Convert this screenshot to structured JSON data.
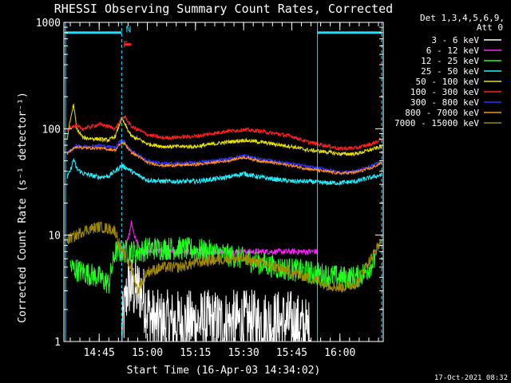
{
  "chart_data": {
    "type": "line",
    "title": "RHESSI Observing Summary Count Rates, Corrected",
    "xlabel": "Start Time (16-Apr-03 14:34:02)",
    "ylabel": "Corrected Count Rate (s⁻¹ detector⁻¹)",
    "y_scale": "log",
    "ylim": [
      1,
      1000
    ],
    "xlim_minutes": [
      34.0,
      133.5
    ],
    "x_ticks": [
      {
        "label": "14:45",
        "value": 45
      },
      {
        "label": "15:00",
        "value": 60
      },
      {
        "label": "15:15",
        "value": 75
      },
      {
        "label": "15:30",
        "value": 90
      },
      {
        "label": "15:45",
        "value": 105
      },
      {
        "label": "16:00",
        "value": 120
      }
    ],
    "y_ticks": [
      {
        "label": "1000",
        "value": 1000
      },
      {
        "label": "100",
        "value": 100
      },
      {
        "label": "10",
        "value": 10
      },
      {
        "label": "1",
        "value": 1
      }
    ],
    "legend_header": [
      "Det 1,3,4,5,6,9,",
      "Att 0"
    ],
    "legend_position": "right",
    "grid": false,
    "footer": "17-Oct-2021 08:32",
    "annotations": [
      {
        "label": "F",
        "color": "#ff3030"
      },
      {
        "label": "N",
        "color": "#20e0ff"
      }
    ],
    "shading_bars": [
      {
        "color": "#20e0ff",
        "x": [
          34.5,
          52.0
        ],
        "y": 800
      },
      {
        "color": "#20e0ff",
        "x": [
          113.0,
          133.0
        ],
        "y": 800
      },
      {
        "color": "#ff2020",
        "x": [
          53.0,
          55.0
        ],
        "y": 620
      }
    ],
    "vlines": [
      {
        "x": 34.5,
        "style": "solid",
        "color": "#20e0ff"
      },
      {
        "x": 52.0,
        "style": "dashed",
        "color": "#20e0ff"
      },
      {
        "x": 113.0,
        "style": "solid",
        "color": "#20e0ff"
      },
      {
        "x": 133.0,
        "style": "dashed",
        "color": "#20e0ff"
      }
    ],
    "series": [
      {
        "name": "3 - 6 keV",
        "color": "#ffffff",
        "noise": 0.7,
        "points": [
          [
            52,
            1.2
          ],
          [
            53,
            2
          ],
          [
            54,
            3.5
          ],
          [
            56,
            3
          ],
          [
            58,
            3
          ],
          [
            60,
            2
          ],
          [
            62,
            1.5
          ],
          [
            75,
            1.5
          ],
          [
            90,
            1.5
          ],
          [
            105,
            1.5
          ],
          [
            111,
            1.2
          ]
        ]
      },
      {
        "name": "6 - 12 keV",
        "color": "#ff20ff",
        "noise": 0.06,
        "points": [
          [
            52,
            7
          ],
          [
            54,
            9
          ],
          [
            55,
            13
          ],
          [
            56,
            10
          ],
          [
            58,
            7
          ],
          [
            60,
            7
          ],
          [
            75,
            7
          ],
          [
            90,
            7
          ],
          [
            105,
            7
          ],
          [
            112,
            7
          ],
          [
            113,
            7
          ]
        ]
      },
      {
        "name": "12 - 25 keV",
        "color": "#20ff20",
        "noise": 0.25,
        "points": [
          [
            36,
            5
          ],
          [
            40,
            4.5
          ],
          [
            45,
            4
          ],
          [
            48,
            3.5
          ],
          [
            50,
            7
          ],
          [
            52,
            7
          ],
          [
            55,
            7
          ],
          [
            58,
            7
          ],
          [
            60,
            7.5
          ],
          [
            70,
            7.5
          ],
          [
            80,
            7
          ],
          [
            90,
            6
          ],
          [
            100,
            5
          ],
          [
            110,
            4.5
          ],
          [
            120,
            4
          ],
          [
            125,
            4
          ],
          [
            128,
            4.5
          ],
          [
            131,
            6
          ]
        ]
      },
      {
        "name": "25 - 50 keV",
        "color": "#20f0ff",
        "noise": 0.05,
        "points": [
          [
            35,
            35
          ],
          [
            36,
            40
          ],
          [
            37,
            52
          ],
          [
            38,
            42
          ],
          [
            40,
            38
          ],
          [
            45,
            35
          ],
          [
            48,
            36
          ],
          [
            50,
            40
          ],
          [
            52,
            45
          ],
          [
            54,
            42
          ],
          [
            56,
            38
          ],
          [
            60,
            33
          ],
          [
            65,
            32
          ],
          [
            75,
            32
          ],
          [
            85,
            35
          ],
          [
            90,
            38
          ],
          [
            95,
            35
          ],
          [
            105,
            32
          ],
          [
            110,
            32
          ],
          [
            115,
            31
          ],
          [
            120,
            31
          ],
          [
            125,
            32
          ],
          [
            130,
            35
          ],
          [
            133,
            37
          ]
        ]
      },
      {
        "name": "50 - 100 keV",
        "color": "#e8e000",
        "noise": 0.04,
        "points": [
          [
            35,
            80
          ],
          [
            36,
            120
          ],
          [
            37,
            170
          ],
          [
            38,
            100
          ],
          [
            40,
            82
          ],
          [
            45,
            80
          ],
          [
            48,
            78
          ],
          [
            50,
            85
          ],
          [
            52,
            125
          ],
          [
            53,
            110
          ],
          [
            55,
            85
          ],
          [
            58,
            78
          ],
          [
            60,
            72
          ],
          [
            65,
            68
          ],
          [
            75,
            68
          ],
          [
            85,
            75
          ],
          [
            90,
            78
          ],
          [
            95,
            75
          ],
          [
            105,
            68
          ],
          [
            110,
            63
          ],
          [
            115,
            61
          ],
          [
            120,
            58
          ],
          [
            125,
            58
          ],
          [
            130,
            64
          ],
          [
            133,
            68
          ]
        ]
      },
      {
        "name": "100 - 300 keV",
        "color": "#ff2020",
        "noise": 0.04,
        "points": [
          [
            35,
            95
          ],
          [
            36,
            105
          ],
          [
            38,
            105
          ],
          [
            40,
            100
          ],
          [
            45,
            110
          ],
          [
            48,
            105
          ],
          [
            50,
            100
          ],
          [
            52,
            125
          ],
          [
            53,
            130
          ],
          [
            55,
            105
          ],
          [
            58,
            95
          ],
          [
            60,
            88
          ],
          [
            65,
            82
          ],
          [
            75,
            85
          ],
          [
            85,
            95
          ],
          [
            90,
            98
          ],
          [
            95,
            95
          ],
          [
            105,
            85
          ],
          [
            110,
            75
          ],
          [
            115,
            70
          ],
          [
            120,
            65
          ],
          [
            125,
            66
          ],
          [
            130,
            72
          ],
          [
            133,
            80
          ]
        ]
      },
      {
        "name": "300 - 800 keV",
        "color": "#3030ff",
        "noise": 0.03,
        "points": [
          [
            35,
            58
          ],
          [
            36,
            62
          ],
          [
            38,
            70
          ],
          [
            40,
            68
          ],
          [
            45,
            70
          ],
          [
            48,
            68
          ],
          [
            50,
            67
          ],
          [
            52,
            80
          ],
          [
            53,
            75
          ],
          [
            55,
            62
          ],
          [
            58,
            55
          ],
          [
            60,
            50
          ],
          [
            65,
            47
          ],
          [
            75,
            48
          ],
          [
            85,
            52
          ],
          [
            90,
            56
          ],
          [
            95,
            52
          ],
          [
            105,
            47
          ],
          [
            110,
            44
          ],
          [
            115,
            42
          ],
          [
            120,
            39
          ],
          [
            125,
            40
          ],
          [
            130,
            45
          ],
          [
            133,
            50
          ]
        ]
      },
      {
        "name": "800 - 7000 keV",
        "color": "#ff9020",
        "noise": 0.03,
        "points": [
          [
            35,
            58
          ],
          [
            36,
            62
          ],
          [
            38,
            68
          ],
          [
            40,
            66
          ],
          [
            45,
            66
          ],
          [
            48,
            64
          ],
          [
            50,
            63
          ],
          [
            52,
            74
          ],
          [
            53,
            72
          ],
          [
            55,
            60
          ],
          [
            58,
            53
          ],
          [
            60,
            48
          ],
          [
            65,
            45
          ],
          [
            75,
            46
          ],
          [
            85,
            50
          ],
          [
            90,
            54
          ],
          [
            95,
            50
          ],
          [
            105,
            45
          ],
          [
            110,
            42
          ],
          [
            115,
            40
          ],
          [
            120,
            38
          ],
          [
            125,
            39
          ],
          [
            130,
            43
          ],
          [
            133,
            48
          ]
        ]
      },
      {
        "name": "7000 - 15000 keV",
        "color": "#a08800",
        "noise": 0.12,
        "points": [
          [
            35,
            9
          ],
          [
            38,
            10
          ],
          [
            40,
            11
          ],
          [
            45,
            12
          ],
          [
            48,
            11.5
          ],
          [
            50,
            11
          ],
          [
            52,
            7
          ],
          [
            55,
            5
          ],
          [
            57,
            3
          ],
          [
            58,
            3.5
          ],
          [
            60,
            4.5
          ],
          [
            65,
            5
          ],
          [
            70,
            5
          ],
          [
            75,
            5.5
          ],
          [
            80,
            5.8
          ],
          [
            85,
            6
          ],
          [
            90,
            6
          ],
          [
            95,
            5.5
          ],
          [
            100,
            5
          ],
          [
            105,
            4.5
          ],
          [
            110,
            4
          ],
          [
            115,
            3.5
          ],
          [
            120,
            3.2
          ],
          [
            125,
            3.5
          ],
          [
            128,
            5
          ],
          [
            131,
            7
          ],
          [
            133,
            9
          ]
        ]
      }
    ]
  }
}
